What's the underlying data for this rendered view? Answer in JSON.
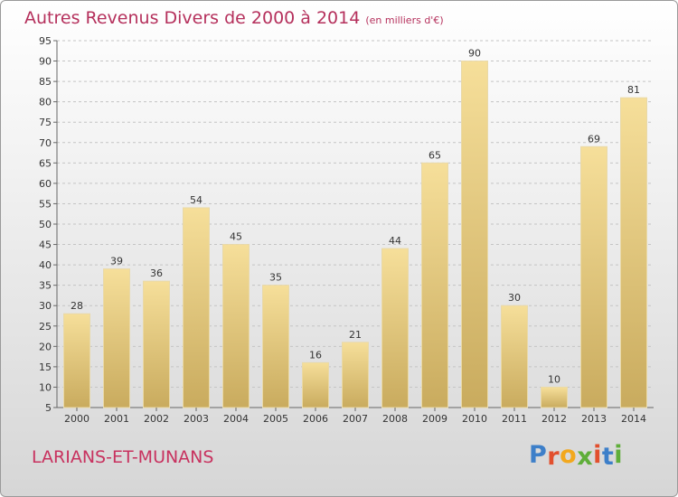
{
  "header": {
    "title": "Autres Revenus Divers de 2000 à 2014",
    "unit": "(en milliers d'€)"
  },
  "footer": {
    "commune": "LARIANS-ET-MUNANS",
    "logo": "Proxiti"
  },
  "colors": {
    "title": "#b5305c",
    "bar_light": "#f6df9a",
    "bar_dark": "#c9ab5e",
    "logo_letters": [
      "#3d7fc9",
      "#e2502e",
      "#f2a81e",
      "#5fae3a",
      "#e2502e",
      "#3d7fc9",
      "#5fae3a"
    ]
  },
  "chart_data": {
    "type": "bar",
    "categories": [
      "2000",
      "2001",
      "2002",
      "2003",
      "2004",
      "2005",
      "2006",
      "2007",
      "2008",
      "2009",
      "2010",
      "2011",
      "2012",
      "2013",
      "2014"
    ],
    "values": [
      28,
      39,
      36,
      54,
      45,
      35,
      16,
      21,
      44,
      65,
      90,
      30,
      10,
      69,
      81
    ],
    "ylim": [
      5,
      95
    ],
    "yticks": [
      5,
      10,
      15,
      20,
      25,
      30,
      35,
      40,
      45,
      50,
      55,
      60,
      65,
      70,
      75,
      80,
      85,
      90,
      95
    ],
    "grid": "horizontal-dashed",
    "legend": "none"
  }
}
